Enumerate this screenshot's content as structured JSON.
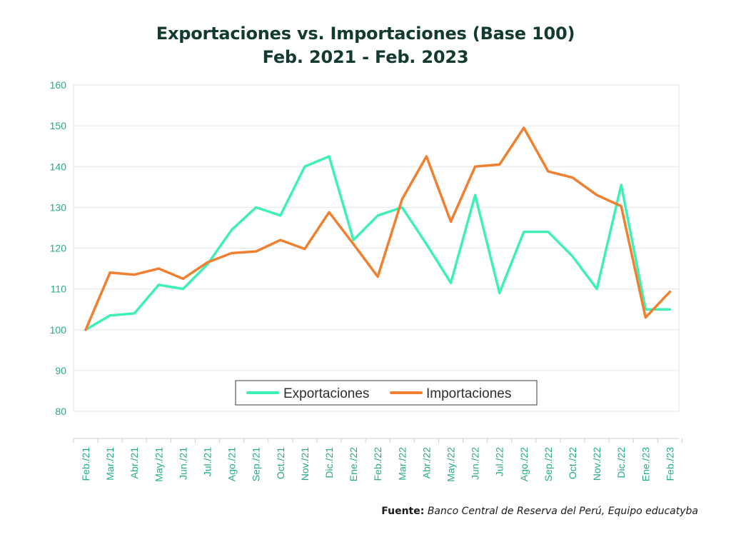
{
  "chart_data": {
    "type": "line",
    "title": "Exportaciones vs. Importaciones (Base 100)",
    "subtitle": "Feb. 2021 - Feb. 2023",
    "categories": [
      "Feb./21",
      "Mar./21",
      "Abr./21",
      "May./21",
      "Jun./21",
      "Jul./21",
      "Ago./21",
      "Sep./21",
      "Oct./21",
      "Nov./21",
      "Dic./21",
      "Ene./22",
      "Feb./22",
      "Mar./22",
      "Abr./22",
      "May./22",
      "Jun./22",
      "Jul./22",
      "Ago./22",
      "Sep./22",
      "Oct./22",
      "Nov./22",
      "Dic./22",
      "Ene./23",
      "Feb./23"
    ],
    "yticks": [
      "160",
      "150",
      "140",
      "130",
      "120",
      "110",
      "100",
      "90",
      "80"
    ],
    "ylim": [
      80,
      160
    ],
    "grid": true,
    "legend_position": "bottom-center",
    "series": [
      {
        "name": "Exportaciones",
        "color": "#3ef0b8",
        "values": [
          100,
          103.5,
          104,
          111,
          110,
          116,
          124.5,
          130,
          128,
          140,
          142.5,
          122,
          128,
          130,
          121,
          111.5,
          133,
          109,
          124,
          124,
          118,
          110,
          135.5,
          105,
          105
        ]
      },
      {
        "name": "Importaciones",
        "color": "#f07f2f",
        "values": [
          100,
          114,
          113.5,
          115,
          112.5,
          116.5,
          118.8,
          119.2,
          122,
          119.8,
          128.8,
          121,
          113,
          132,
          142.5,
          126.5,
          140,
          140.5,
          149.5,
          138.8,
          137.3,
          133,
          130.3,
          103,
          109.3
        ]
      }
    ],
    "axis_color": "#27a98a",
    "source_label": "Fuente:",
    "source_text": "Banco Central de Reserva del Perú, Equipo educatyba"
  }
}
